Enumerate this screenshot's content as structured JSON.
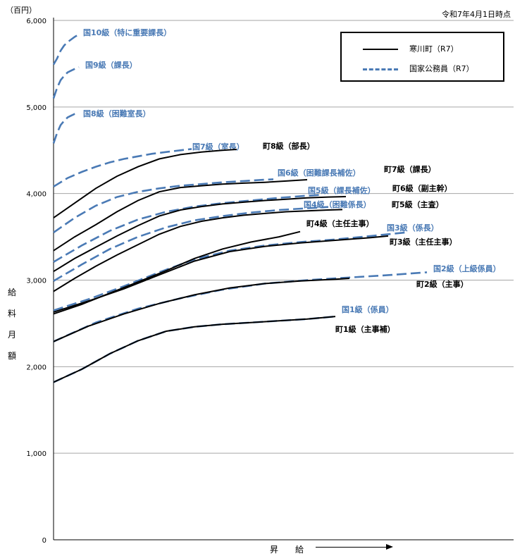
{
  "unit_label": "（百円）",
  "date_label": "令和7年4月1日時点",
  "xlabel": "昇　給",
  "ylabel": "給料月額",
  "legend": [
    {
      "label": "寒川町（R7）",
      "style": "solid",
      "color": "#000000"
    },
    {
      "label": "国家公務員（R7）",
      "style": "dashed",
      "color": "#4a7ab5"
    }
  ],
  "colors": {
    "town": "#000000",
    "national": "#4a7ab5",
    "grid": "#a6a6a6"
  },
  "chart_data": {
    "type": "line",
    "title": "",
    "xlabel": "昇　給",
    "ylabel": "給料月額",
    "ylim": [
      0,
      6000
    ],
    "yticks": [
      0,
      1000,
      2000,
      3000,
      4000,
      5000,
      6000
    ],
    "ytick_labels": [
      "0",
      "1,000",
      "2,000",
      "3,000",
      "4,000",
      "5,000",
      "6,000"
    ],
    "grid": true,
    "legend_position": "top-right",
    "series": [
      {
        "name": "国10級（特に重要課長）",
        "group": "national",
        "x": [
          0,
          5,
          10,
          15,
          20,
          25,
          30,
          36
        ],
        "y": [
          5490,
          5560,
          5650,
          5710,
          5750,
          5780,
          5810,
          5840
        ]
      },
      {
        "name": "国9級（課長）",
        "group": "national",
        "x": [
          0,
          5,
          10,
          15,
          20,
          25,
          30,
          36
        ],
        "y": [
          5100,
          5220,
          5310,
          5360,
          5400,
          5420,
          5440,
          5460
        ]
      },
      {
        "name": "国8級（困難室長）",
        "group": "national",
        "x": [
          0,
          5,
          10,
          15,
          20,
          25,
          30,
          36
        ],
        "y": [
          4580,
          4700,
          4790,
          4840,
          4880,
          4900,
          4920,
          4930
        ]
      },
      {
        "name": "国7級（室長）",
        "group": "national",
        "x": [
          0,
          20,
          40,
          60,
          80,
          100,
          120,
          140,
          160,
          180,
          196
        ],
        "y": [
          4080,
          4180,
          4250,
          4310,
          4360,
          4400,
          4430,
          4460,
          4480,
          4500,
          4515
        ]
      },
      {
        "name": "国6級（困難課長補佐）",
        "group": "national",
        "x": [
          0,
          30,
          60,
          90,
          120,
          150,
          180,
          210,
          240,
          270,
          300,
          312
        ],
        "y": [
          3550,
          3720,
          3860,
          3960,
          4020,
          4060,
          4090,
          4110,
          4130,
          4145,
          4160,
          4165
        ]
      },
      {
        "name": "国5級（課長補佐）",
        "group": "national",
        "x": [
          0,
          40,
          80,
          120,
          160,
          200,
          240,
          280,
          320,
          360,
          380
        ],
        "y": [
          3210,
          3400,
          3570,
          3700,
          3790,
          3850,
          3890,
          3920,
          3950,
          3975,
          3985
        ]
      },
      {
        "name": "国4級（困難係長）",
        "group": "national",
        "x": [
          0,
          40,
          80,
          120,
          160,
          200,
          240,
          280,
          320,
          360,
          390
        ],
        "y": [
          2990,
          3180,
          3360,
          3500,
          3610,
          3690,
          3740,
          3780,
          3810,
          3830,
          3845
        ]
      },
      {
        "name": "国3級（係長）",
        "group": "national",
        "x": [
          0,
          50,
          100,
          150,
          200,
          250,
          300,
          350,
          400,
          450,
          500
        ],
        "y": [
          2650,
          2780,
          2930,
          3090,
          3240,
          3340,
          3400,
          3440,
          3470,
          3510,
          3550
        ]
      },
      {
        "name": "国2級（上級係員）",
        "group": "national",
        "x": [
          0,
          60,
          120,
          180,
          240,
          300,
          360,
          420,
          480,
          530
        ],
        "y": [
          2290,
          2510,
          2670,
          2790,
          2890,
          2960,
          3000,
          3030,
          3060,
          3090
        ]
      },
      {
        "name": "国1級（係員）",
        "group": "national",
        "x": [
          0,
          40,
          80,
          120,
          160,
          200,
          240,
          280,
          320,
          360,
          400
        ],
        "y": [
          1820,
          1970,
          2150,
          2300,
          2410,
          2460,
          2490,
          2510,
          2530,
          2550,
          2580
        ]
      },
      {
        "name": "町8級（部長）",
        "group": "town",
        "x": [
          0,
          30,
          60,
          90,
          120,
          150,
          180,
          210,
          240,
          260
        ],
        "y": [
          3720,
          3890,
          4060,
          4200,
          4310,
          4400,
          4450,
          4480,
          4500,
          4510
        ]
      },
      {
        "name": "町7級（課長）",
        "group": "town",
        "x": [
          0,
          30,
          60,
          90,
          120,
          150,
          180,
          210,
          240,
          270,
          300,
          330,
          360
        ],
        "y": [
          3340,
          3500,
          3640,
          3790,
          3920,
          4020,
          4070,
          4090,
          4110,
          4120,
          4130,
          4145,
          4160
        ]
      },
      {
        "name": "町6級（副主幹）",
        "group": "town",
        "x": [
          0,
          30,
          60,
          90,
          120,
          150,
          180,
          210,
          240,
          270,
          300,
          330,
          360,
          390,
          415
        ],
        "y": [
          3100,
          3250,
          3380,
          3510,
          3630,
          3740,
          3810,
          3850,
          3880,
          3900,
          3920,
          3935,
          3950,
          3960,
          3965
        ]
      },
      {
        "name": "町5級（主査）",
        "group": "town",
        "x": [
          0,
          30,
          60,
          90,
          120,
          150,
          180,
          210,
          240,
          270,
          300,
          330,
          360,
          390,
          410
        ],
        "y": [
          2870,
          3020,
          3160,
          3290,
          3410,
          3530,
          3620,
          3680,
          3720,
          3750,
          3770,
          3790,
          3800,
          3810,
          3815
        ]
      },
      {
        "name": "町4級（主任主事）",
        "group": "town",
        "x": [
          0,
          40,
          80,
          120,
          160,
          200,
          240,
          280,
          320,
          350
        ],
        "y": [
          2610,
          2720,
          2850,
          2980,
          3110,
          3250,
          3360,
          3440,
          3500,
          3560
        ]
      },
      {
        "name": "町3級（主任主事）",
        "group": "town",
        "x": [
          0,
          50,
          100,
          150,
          200,
          250,
          300,
          350,
          400,
          450,
          475
        ],
        "y": [
          2630,
          2760,
          2900,
          3060,
          3220,
          3330,
          3390,
          3430,
          3460,
          3490,
          3510
        ]
      },
      {
        "name": "町2級（主事）",
        "group": "town",
        "x": [
          0,
          50,
          100,
          150,
          200,
          250,
          300,
          350,
          400,
          420
        ],
        "y": [
          2290,
          2470,
          2610,
          2730,
          2830,
          2910,
          2960,
          2990,
          3010,
          3020
        ]
      },
      {
        "name": "町1級（主事補）",
        "group": "town",
        "x": [
          0,
          40,
          80,
          120,
          160,
          200,
          240,
          280,
          320,
          360,
          400
        ],
        "y": [
          1820,
          1970,
          2150,
          2300,
          2410,
          2460,
          2490,
          2510,
          2530,
          2550,
          2580
        ]
      }
    ]
  }
}
